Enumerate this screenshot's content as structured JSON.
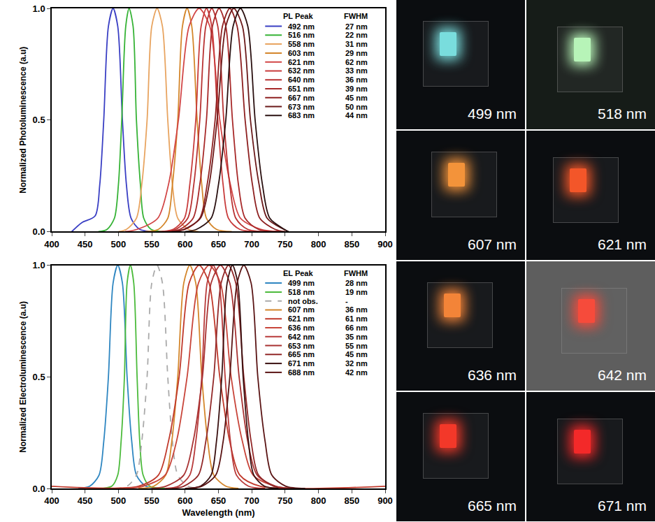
{
  "chart_data": [
    {
      "type": "line",
      "y_title": "Normalized Photoluminescence (a.u)",
      "legend_header": "PL Peak",
      "fwhm_header": "FWHM",
      "legend": "top right",
      "xlim": [
        400,
        900
      ],
      "xticks": [
        400,
        450,
        500,
        550,
        600,
        650,
        700,
        750,
        800,
        850,
        900
      ],
      "ylim": [
        0,
        1.0
      ],
      "yticks": [
        {
          "value": 0,
          "label": "0.0"
        },
        {
          "value": 0.5,
          "label": "0.5"
        },
        {
          "value": 1.0,
          "label": "1.0"
        }
      ],
      "series": [
        {
          "name": "492 nm",
          "fwhm": "27 nm",
          "color": "#3a3fc4",
          "x": [
            430,
            445,
            465,
            472,
            478,
            485,
            492,
            499,
            506,
            512,
            519,
            532,
            560
          ],
          "values": [
            0,
            0.04,
            0.07,
            0.21,
            0.5,
            0.92,
            1,
            0.92,
            0.5,
            0.21,
            0.06,
            0.01,
            0
          ]
        },
        {
          "name": "516 nm",
          "fwhm": "22 nm",
          "color": "#36b336",
          "x": [
            470,
            483,
            494,
            500,
            505,
            511,
            516,
            522,
            527,
            533,
            538,
            549,
            570
          ],
          "values": [
            0,
            0.01,
            0.06,
            0.21,
            0.5,
            0.92,
            1,
            0.92,
            0.5,
            0.21,
            0.06,
            0.01,
            0
          ]
        },
        {
          "name": "558 nm",
          "fwhm": "31 nm",
          "color": "#e8a460",
          "x": [
            500,
            512,
            527,
            535,
            543,
            550,
            558,
            566,
            574,
            581,
            589,
            605,
            620
          ],
          "values": [
            0,
            0.01,
            0.06,
            0.21,
            0.5,
            0.92,
            1,
            0.92,
            0.5,
            0.21,
            0.06,
            0.01,
            0
          ]
        },
        {
          "name": "603 nm",
          "fwhm": "29 nm",
          "color": "#d4862b",
          "x": [
            540,
            560,
            574,
            581,
            589,
            596,
            603,
            610,
            618,
            625,
            632,
            647,
            670
          ],
          "values": [
            0,
            0.01,
            0.06,
            0.21,
            0.5,
            0.92,
            1,
            0.92,
            0.5,
            0.21,
            0.06,
            0.01,
            0
          ]
        },
        {
          "name": "621 nm",
          "fwhm": "62 nm",
          "color": "#d24646",
          "x": [
            510,
            528,
            559,
            575,
            590,
            606,
            621,
            637,
            652,
            668,
            683,
            714,
            740
          ],
          "values": [
            0,
            0.01,
            0.06,
            0.21,
            0.5,
            0.92,
            1,
            0.92,
            0.5,
            0.21,
            0.06,
            0.01,
            0
          ]
        },
        {
          "name": "632 nm",
          "fwhm": "33 nm",
          "color": "#c83c3c",
          "x": [
            560,
            582,
            599,
            607,
            616,
            624,
            632,
            640,
            649,
            657,
            665,
            682,
            740
          ],
          "values": [
            0,
            0.01,
            0.06,
            0.21,
            0.5,
            0.92,
            1,
            0.92,
            0.5,
            0.21,
            0.06,
            0.01,
            0
          ]
        },
        {
          "name": "640 nm",
          "fwhm": "36 nm",
          "color": "#b83232",
          "x": [
            565,
            586,
            604,
            613,
            622,
            631,
            640,
            649,
            658,
            667,
            676,
            694,
            745
          ],
          "values": [
            0,
            0.01,
            0.06,
            0.21,
            0.5,
            0.92,
            1,
            0.92,
            0.5,
            0.21,
            0.06,
            0.01,
            0
          ]
        },
        {
          "name": "651 nm",
          "fwhm": "39 nm",
          "color": "#a82a2a",
          "x": [
            570,
            592,
            612,
            622,
            632,
            641,
            651,
            661,
            671,
            680,
            690,
            710,
            745
          ],
          "values": [
            0,
            0.01,
            0.06,
            0.21,
            0.5,
            0.92,
            1,
            0.92,
            0.5,
            0.21,
            0.06,
            0.01,
            0
          ]
        },
        {
          "name": "667 nm",
          "fwhm": "45 nm",
          "color": "#8e2020",
          "x": [
            580,
            600,
            622,
            633,
            645,
            656,
            667,
            678,
            690,
            701,
            712,
            735,
            750
          ],
          "values": [
            0,
            0.01,
            0.06,
            0.21,
            0.5,
            0.92,
            1,
            0.92,
            0.5,
            0.21,
            0.06,
            0.01,
            0
          ]
        },
        {
          "name": "673 nm",
          "fwhm": "50 nm",
          "color": "#6b1a1a",
          "x": [
            580,
            598,
            623,
            636,
            648,
            661,
            673,
            686,
            698,
            711,
            723,
            748,
            755
          ],
          "values": [
            0,
            0.01,
            0.06,
            0.21,
            0.5,
            0.92,
            1,
            0.92,
            0.5,
            0.21,
            0.06,
            0.01,
            0
          ]
        },
        {
          "name": "683 nm",
          "fwhm": "44 nm",
          "color": "#2a1010",
          "x": [
            600,
            617,
            639,
            650,
            661,
            672,
            683,
            694,
            705,
            716,
            727,
            749,
            755
          ],
          "values": [
            0,
            0.01,
            0.06,
            0.21,
            0.5,
            0.92,
            1,
            0.92,
            0.5,
            0.21,
            0.06,
            0.01,
            0
          ]
        }
      ]
    },
    {
      "type": "line",
      "x_title": "Wavelength (nm)",
      "y_title": "Normalized Electroluminescence (a.u)",
      "legend_header": "EL Peak",
      "fwhm_header": "FWHM",
      "legend": "top right",
      "xlim": [
        400,
        900
      ],
      "xticks": [
        400,
        450,
        500,
        550,
        600,
        650,
        700,
        750,
        800,
        850,
        900
      ],
      "ylim": [
        0,
        1.0
      ],
      "yticks": [
        {
          "value": 0,
          "label": "0.0"
        },
        {
          "value": 0.5,
          "label": "0.5"
        },
        {
          "value": 1.0,
          "label": "1.0"
        }
      ],
      "series": [
        {
          "name": "499 nm",
          "fwhm": "28 nm",
          "color": "#2e86c1",
          "x": [
            440,
            457,
            471,
            478,
            485,
            492,
            499,
            506,
            513,
            520,
            527,
            541,
            560
          ],
          "values": [
            0,
            0.01,
            0.06,
            0.21,
            0.5,
            0.92,
            1,
            0.92,
            0.5,
            0.21,
            0.06,
            0.01,
            0
          ]
        },
        {
          "name": "518 nm",
          "fwhm": "19 nm",
          "color": "#4cbb3c",
          "x": [
            470,
            490,
            499,
            504,
            509,
            513,
            518,
            523,
            528,
            532,
            537,
            547,
            570
          ],
          "values": [
            0,
            0.01,
            0.06,
            0.21,
            0.5,
            0.92,
            1,
            0.92,
            0.5,
            0.21,
            0.06,
            0.01,
            0
          ]
        },
        {
          "name": "not obs.",
          "fwhm": "-",
          "color": "#aaaaaa",
          "line_style": "dash",
          "x": [
            495,
            513,
            527,
            535,
            543,
            550,
            558,
            566,
            574,
            581,
            589,
            604,
            620
          ],
          "values": [
            0,
            0.01,
            0.06,
            0.21,
            0.5,
            0.92,
            1,
            0.92,
            0.5,
            0.21,
            0.06,
            0.01,
            0
          ]
        },
        {
          "name": "607 nm",
          "fwhm": "36 nm",
          "color": "#d4862b",
          "x": [
            530,
            553,
            571,
            580,
            589,
            598,
            607,
            616,
            625,
            634,
            643,
            661,
            680
          ],
          "values": [
            0,
            0.01,
            0.06,
            0.21,
            0.5,
            0.92,
            1,
            0.92,
            0.5,
            0.21,
            0.06,
            0.01,
            0
          ]
        },
        {
          "name": "621 nm",
          "fwhm": "61 nm",
          "color": "#c0392b",
          "x": [
            400,
            530,
            560,
            575,
            591,
            606,
            621,
            636,
            652,
            667,
            682,
            713,
            900
          ],
          "values": [
            0.01,
            0.01,
            0.06,
            0.21,
            0.5,
            0.92,
            1,
            0.92,
            0.5,
            0.21,
            0.06,
            0.01,
            0.01
          ]
        },
        {
          "name": "636 nm",
          "fwhm": "66 nm",
          "color": "#c8453a",
          "x": [
            510,
            537,
            570,
            587,
            603,
            620,
            636,
            653,
            669,
            686,
            702,
            735,
            760
          ],
          "values": [
            0,
            0.01,
            0.06,
            0.21,
            0.5,
            0.92,
            1,
            0.92,
            0.5,
            0.21,
            0.06,
            0.01,
            0
          ]
        },
        {
          "name": "642 nm",
          "fwhm": "35 nm",
          "color": "#b83a3a",
          "x": [
            570,
            590,
            607,
            616,
            625,
            633,
            642,
            651,
            660,
            668,
            677,
            695,
            720
          ],
          "values": [
            0,
            0.01,
            0.06,
            0.21,
            0.5,
            0.92,
            1,
            0.92,
            0.5,
            0.21,
            0.06,
            0.01,
            0
          ]
        },
        {
          "name": "653 nm",
          "fwhm": "55 nm",
          "color": "#a83232",
          "x": [
            550,
            571,
            598,
            612,
            626,
            639,
            653,
            667,
            681,
            694,
            708,
            736,
            760
          ],
          "values": [
            0,
            0.01,
            0.06,
            0.21,
            0.5,
            0.92,
            1,
            0.92,
            0.5,
            0.21,
            0.06,
            0.01,
            0
          ]
        },
        {
          "name": "665 nm",
          "fwhm": "45 nm",
          "color": "#922828",
          "x": [
            580,
            598,
            620,
            631,
            643,
            654,
            665,
            676,
            688,
            699,
            710,
            733,
            760
          ],
          "values": [
            0,
            0.01,
            0.06,
            0.21,
            0.5,
            0.92,
            1,
            0.92,
            0.5,
            0.21,
            0.06,
            0.01,
            0
          ]
        },
        {
          "name": "671 nm",
          "fwhm": "32 nm",
          "color": "#3a1010",
          "x": [
            600,
            623,
            639,
            647,
            655,
            663,
            671,
            679,
            687,
            695,
            703,
            719,
            740
          ],
          "values": [
            0,
            0.01,
            0.06,
            0.21,
            0.5,
            0.92,
            1,
            0.92,
            0.5,
            0.21,
            0.06,
            0.01,
            0
          ]
        },
        {
          "name": "688 nm",
          "fwhm": "42 nm",
          "color": "#5a1414",
          "x": [
            600,
            625,
            646,
            657,
            667,
            678,
            688,
            699,
            709,
            720,
            730,
            751,
            780
          ],
          "values": [
            0,
            0.01,
            0.06,
            0.21,
            0.5,
            0.92,
            1,
            0.92,
            0.5,
            0.21,
            0.06,
            0.01,
            0
          ]
        }
      ]
    }
  ],
  "photos": [
    {
      "label": "499 nm",
      "glow": "#7fe8e8",
      "background": "#0b0d10"
    },
    {
      "label": "518 nm",
      "glow": "#c0ffc0",
      "background": "#161c18"
    },
    {
      "label": "607 nm",
      "glow": "#ff9a3c",
      "background": "#0b0d10"
    },
    {
      "label": "621 nm",
      "glow": "#ff5a2a",
      "background": "#0b0d10"
    },
    {
      "label": "636 nm",
      "glow": "#ff8a3a",
      "background": "#0b0d10"
    },
    {
      "label": "642 nm",
      "glow": "#ff4a3a",
      "background": "#5e5e5e"
    },
    {
      "label": "665 nm",
      "glow": "#ff3a2a",
      "background": "#0b0d10"
    },
    {
      "label": "671 nm",
      "glow": "#ff2a2a",
      "background": "#0b0d10"
    }
  ]
}
